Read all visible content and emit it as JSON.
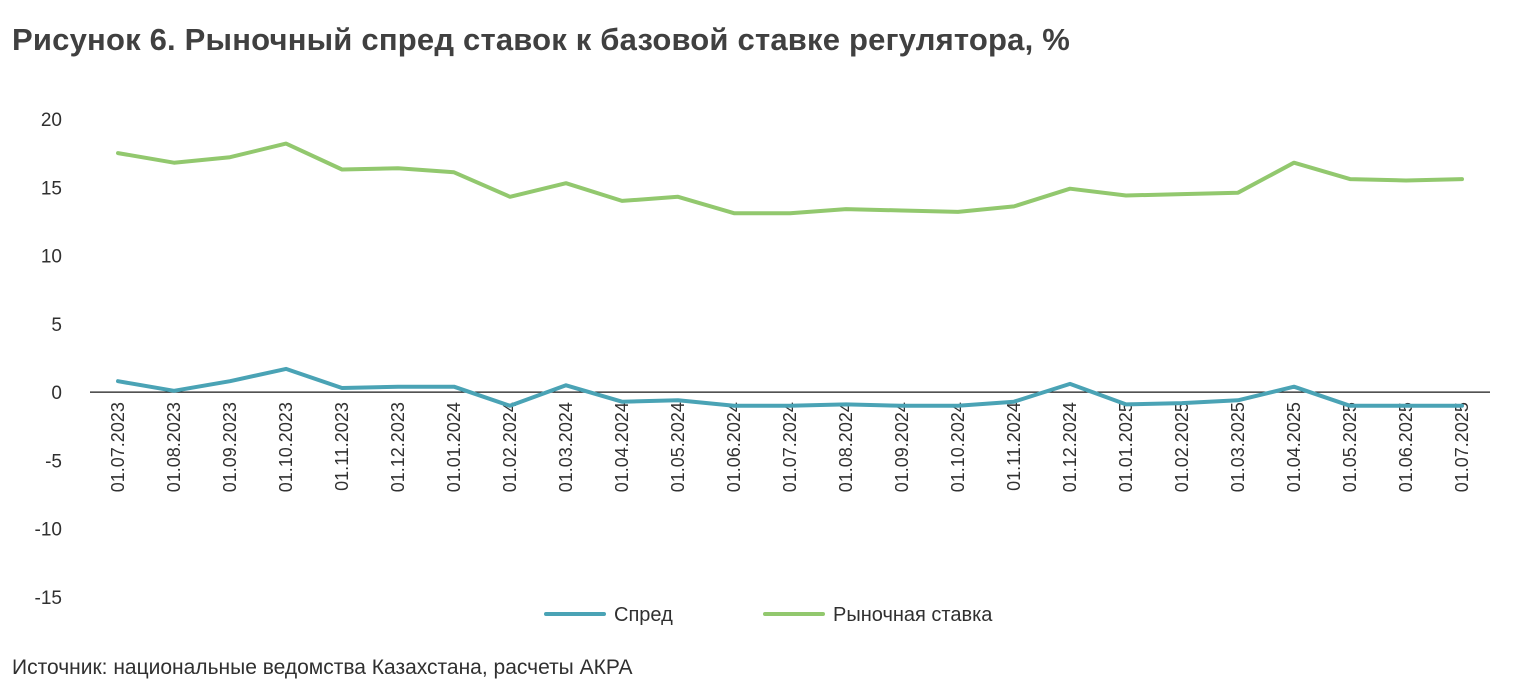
{
  "title": "Рисунок 6. Рыночный спред ставок к базовой ставке регулятора, %",
  "source": "Источник: национальные ведомства Казахстана, расчеты АКРА",
  "chart_data": {
    "type": "line",
    "ylim": [
      -15,
      20
    ],
    "yticks": [
      20,
      15,
      10,
      5,
      0,
      -5,
      -10,
      -15
    ],
    "legend_position": "bottom",
    "x": [
      "01.07.2023",
      "01.08.2023",
      "01.09.2023",
      "01.10.2023",
      "01.11.2023",
      "01.12.2023",
      "01.01.2024",
      "01.02.2024",
      "01.03.2024",
      "01.04.2024",
      "01.05.2024",
      "01.06.2024",
      "01.07.2024",
      "01.08.2024",
      "01.09.2024",
      "01.10.2024",
      "01.11.2024",
      "01.12.2024",
      "01.01.2025",
      "01.02.2025",
      "01.03.2025",
      "01.04.2025",
      "01.05.2025",
      "01.06.2025",
      "01.07.2025"
    ],
    "series": [
      {
        "name": "Спред",
        "color": "#4aa3b5",
        "values": [
          0.8,
          0.1,
          0.8,
          1.7,
          0.3,
          0.4,
          0.4,
          -1.0,
          0.5,
          -0.7,
          -0.6,
          -1.0,
          -1.0,
          -0.9,
          -1.0,
          -1.0,
          -0.7,
          0.6,
          -0.9,
          -0.8,
          -0.6,
          0.4,
          -1.0,
          -1.0,
          -1.0
        ]
      },
      {
        "name": "Рыночная ставка",
        "color": "#92c86e",
        "values": [
          17.5,
          16.8,
          17.2,
          18.2,
          16.3,
          16.4,
          16.1,
          14.3,
          15.3,
          14.0,
          14.3,
          13.1,
          13.1,
          13.4,
          13.3,
          13.2,
          13.6,
          14.9,
          14.4,
          14.5,
          14.6,
          16.8,
          15.6,
          15.5,
          15.6
        ]
      }
    ]
  }
}
